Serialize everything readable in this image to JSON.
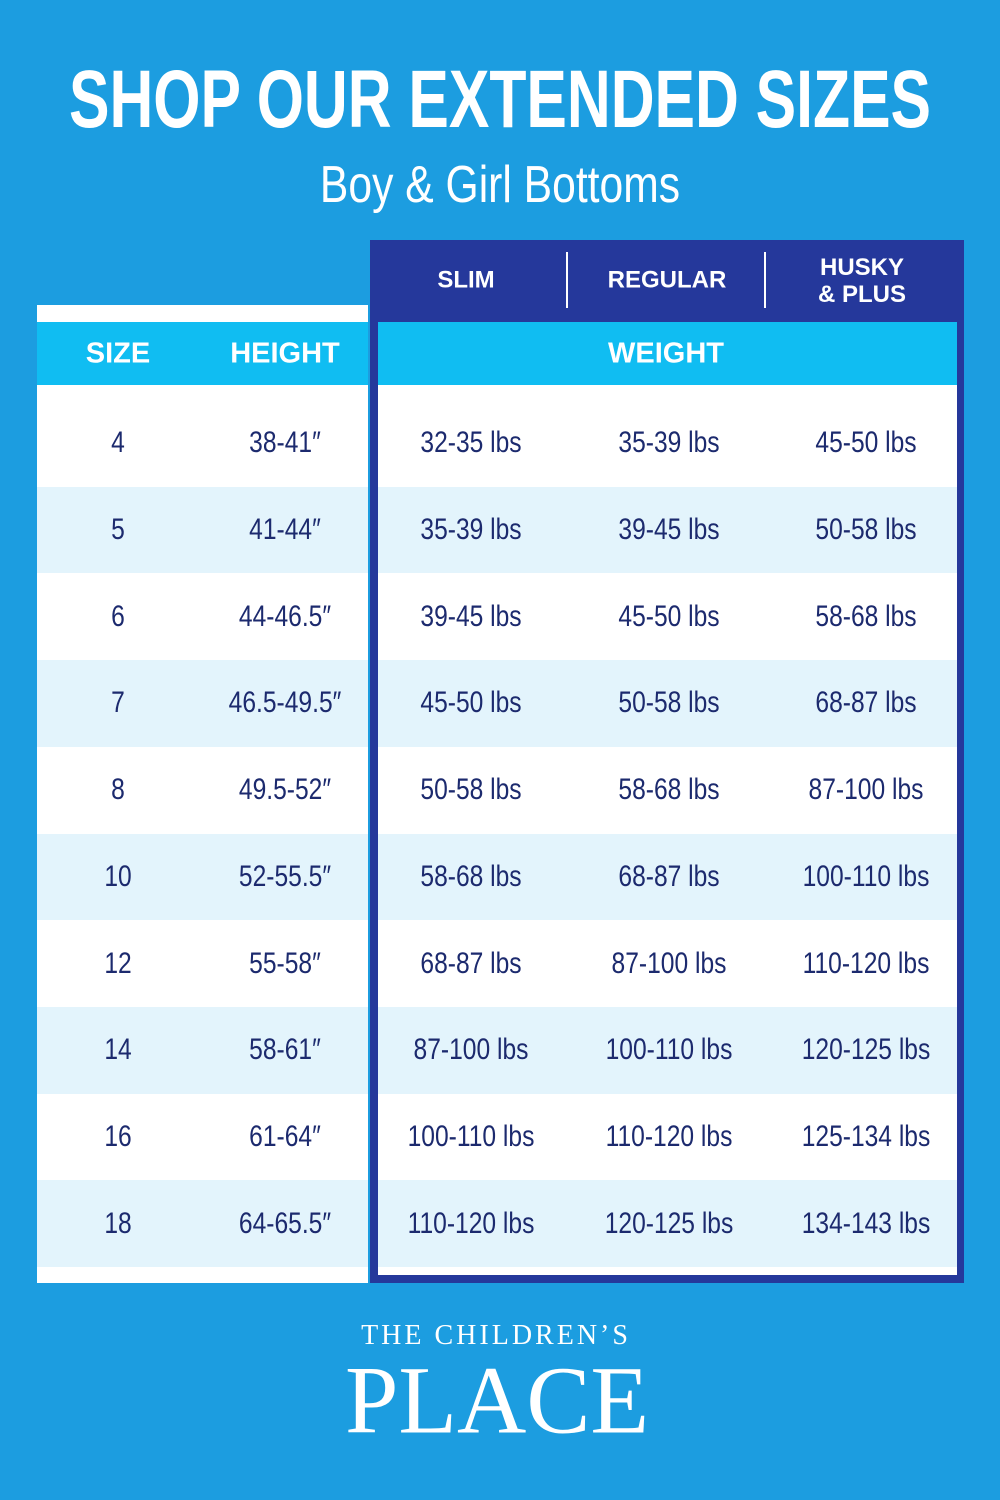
{
  "header": {
    "title": "SHOP OUR EXTENDED SIZES",
    "subtitle": "Boy & Girl Bottoms"
  },
  "table": {
    "columns": [
      "SIZE",
      "HEIGHT"
    ],
    "fit_columns": [
      [
        "SLIM"
      ],
      [
        "REGULAR"
      ],
      [
        "HUSKY",
        "& PLUS"
      ]
    ],
    "weight_label": "WEIGHT",
    "rows": [
      [
        "4",
        "38-41″",
        "32-35 lbs",
        "35-39 lbs",
        "45-50 lbs"
      ],
      [
        "5",
        "41-44″",
        "35-39 lbs",
        "39-45 lbs",
        "50-58 lbs"
      ],
      [
        "6",
        "44-46.5″",
        "39-45 lbs",
        "45-50 lbs",
        "58-68 lbs"
      ],
      [
        "7",
        "46.5-49.5″",
        "45-50 lbs",
        "50-58 lbs",
        "68-87 lbs"
      ],
      [
        "8",
        "49.5-52″",
        "50-58 lbs",
        "58-68 lbs",
        "87-100 lbs"
      ],
      [
        "10",
        "52-55.5″",
        "58-68 lbs",
        "68-87 lbs",
        "100-110 lbs"
      ],
      [
        "12",
        "55-58″",
        "68-87 lbs",
        "87-100 lbs",
        "110-120 lbs"
      ],
      [
        "14",
        "58-61″",
        "87-100 lbs",
        "100-110 lbs",
        "120-125 lbs"
      ],
      [
        "16",
        "61-64″",
        "100-110 lbs",
        "110-120 lbs",
        "125-134 lbs"
      ],
      [
        "18",
        "64-65.5″",
        "110-120 lbs",
        "120-125 lbs",
        "134-143 lbs"
      ]
    ]
  },
  "footer": {
    "brand_top": "THE CHILDREN’S",
    "brand_main": "PLACE"
  }
}
